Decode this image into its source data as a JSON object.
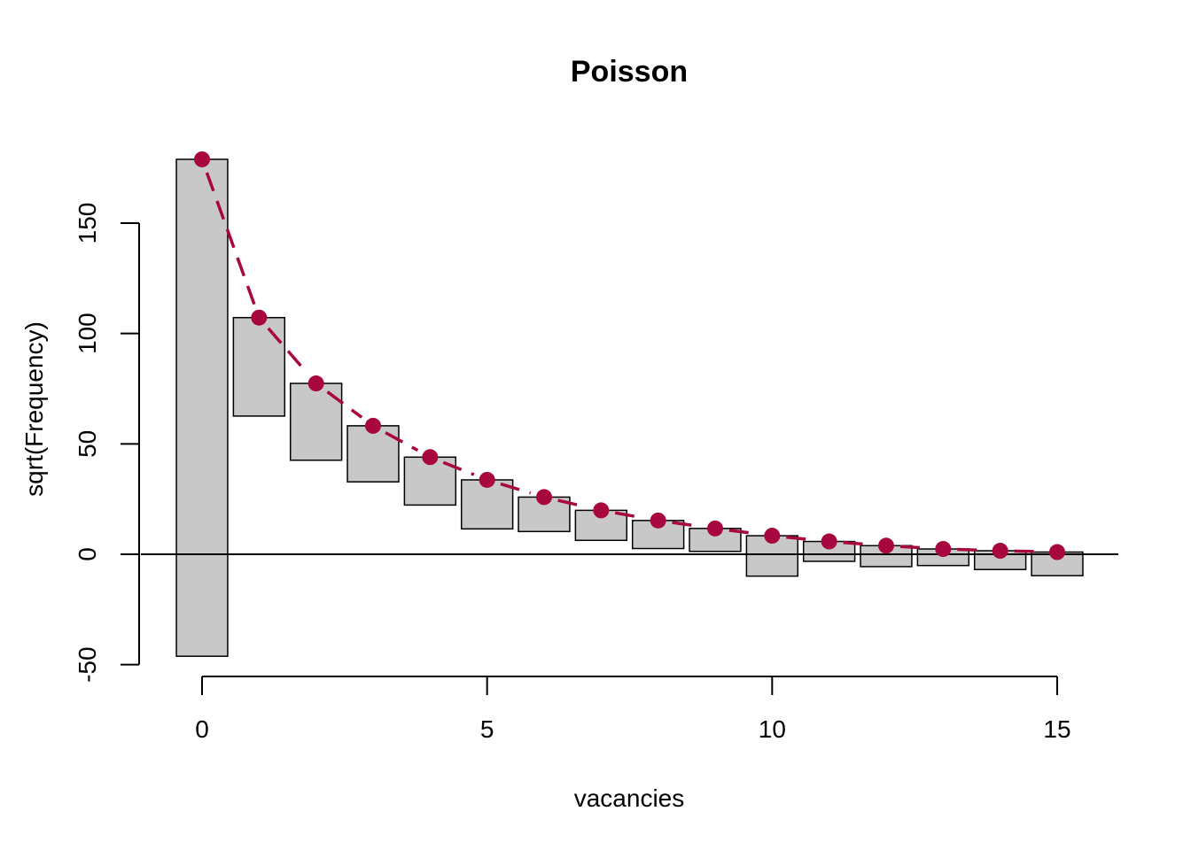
{
  "chart_data": {
    "type": "bar",
    "subtype": "hanging-rootogram",
    "title": "Poisson",
    "xlabel": "vacancies",
    "ylabel": "sqrt(Frequency)",
    "x_ticks": [
      "0",
      "5",
      "10",
      "15"
    ],
    "y_ticks": [
      "-50",
      "0",
      "50",
      "100",
      "150"
    ],
    "xlim": [
      -1.1,
      16.1
    ],
    "ylim": [
      -50,
      180
    ],
    "x": [
      0,
      1,
      2,
      3,
      4,
      5,
      6,
      7,
      8,
      9,
      10,
      11,
      12,
      13,
      14,
      15
    ],
    "bar_top": [
      178.9,
      107.2,
      77.4,
      58.2,
      44.0,
      33.7,
      25.9,
      19.9,
      15.3,
      11.7,
      8.4,
      5.8,
      3.9,
      2.4,
      1.6,
      1.0
    ],
    "bar_bottom": [
      -46.2,
      62.6,
      42.6,
      32.8,
      22.3,
      11.5,
      10.3,
      6.3,
      2.6,
      1.3,
      -9.9,
      -3.2,
      -5.6,
      -5.1,
      -6.9,
      -9.7
    ],
    "fitted": [
      178.9,
      107.2,
      77.4,
      58.2,
      44.0,
      33.7,
      25.9,
      19.9,
      15.3,
      11.7,
      8.4,
      5.8,
      3.9,
      2.4,
      1.6,
      1.0
    ],
    "bar_color": "#c8c8c8",
    "line_color": "#a8063f",
    "reference_line": 0
  }
}
